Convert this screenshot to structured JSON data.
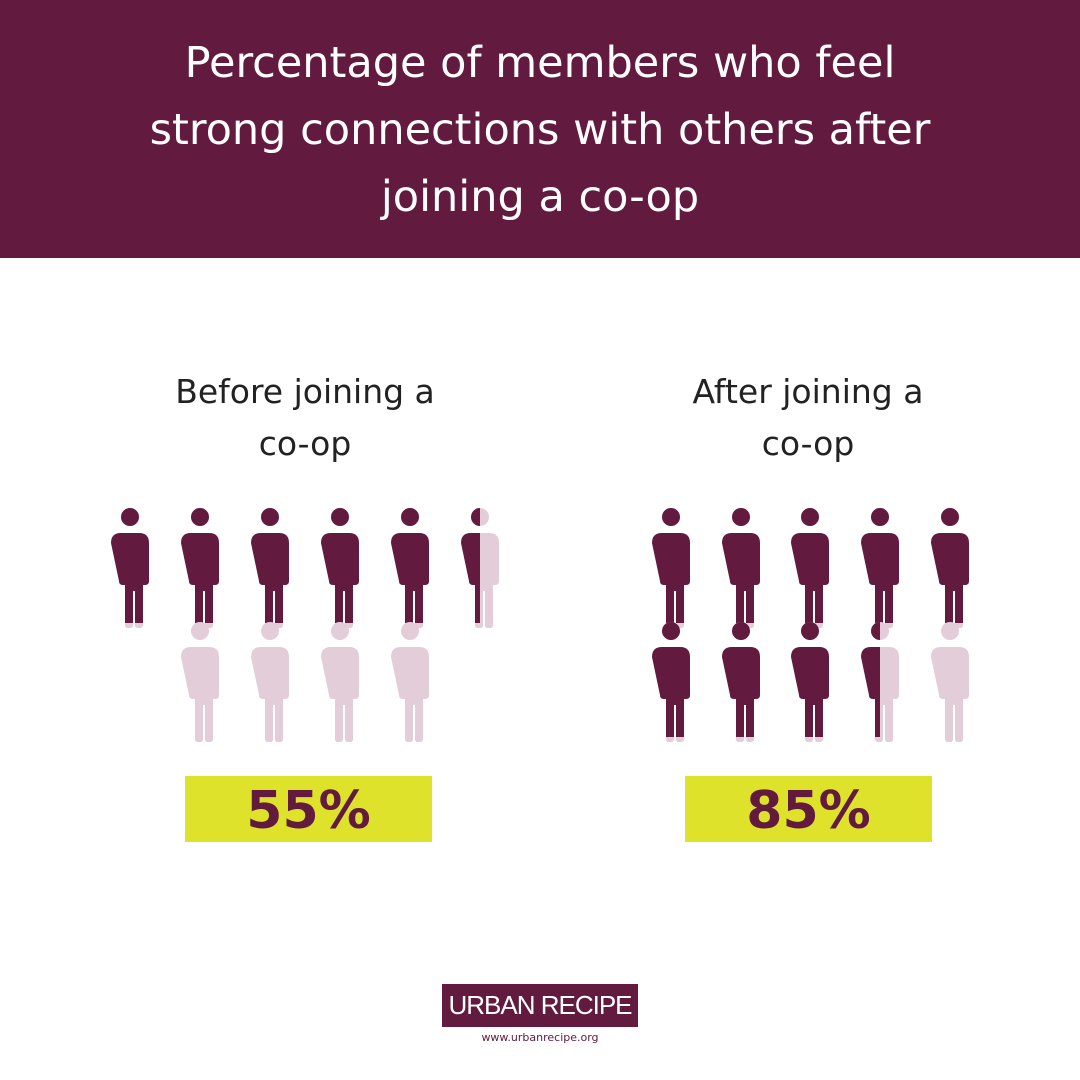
{
  "chart_data": {
    "type": "pictogram",
    "title": "Percentage of members who feel strong connections with others after joining a co-op",
    "categories": [
      "Before joining a co-op",
      "After joining a co-op"
    ],
    "values": [
      55,
      85
    ],
    "value_labels": [
      "55%",
      "85%"
    ],
    "ylim": [
      0,
      100
    ],
    "color": "#621a3f",
    "empty_color": "#e2cdd9",
    "label_color": "#dfe22a"
  },
  "footer": {
    "logo": "URBAN RECIPE",
    "url": "www.urbanrecipe.org"
  }
}
